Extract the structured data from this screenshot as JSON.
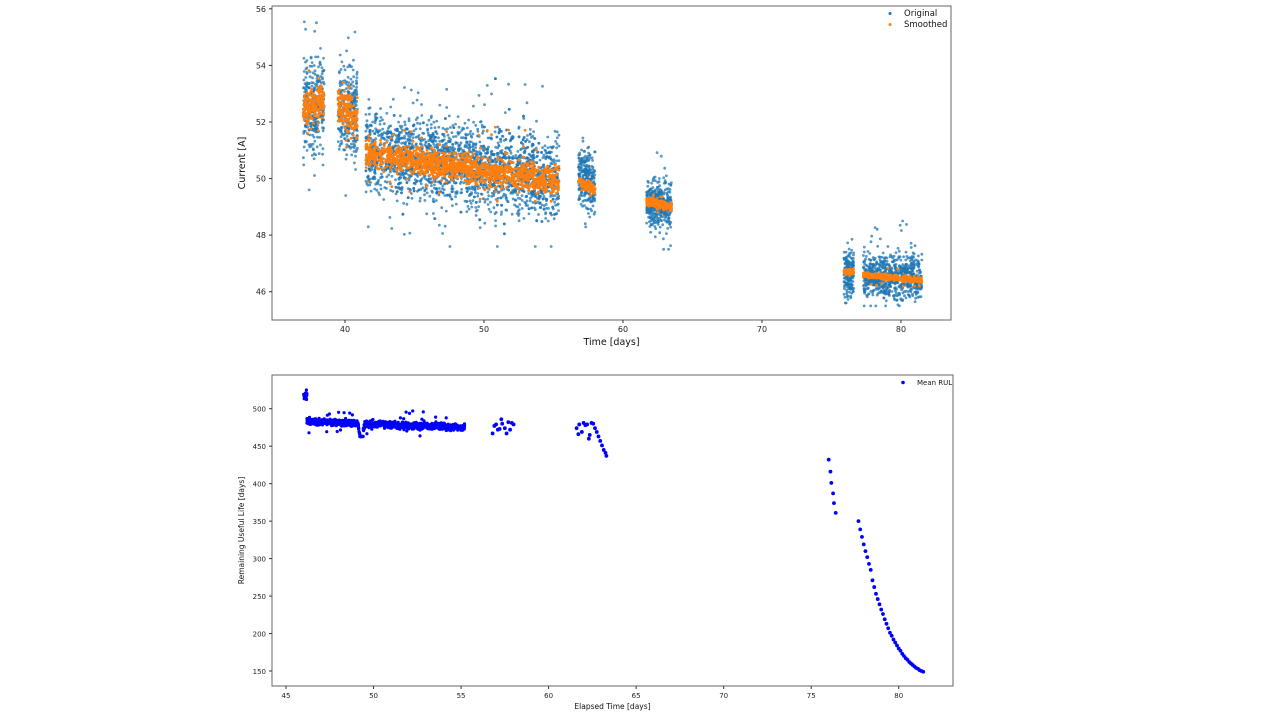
{
  "chart_data": [
    {
      "type": "scatter",
      "xlabel": "Time [days]",
      "ylabel": "Current [A]",
      "xlim": [
        34.75,
        83.6
      ],
      "ylim": [
        45.0,
        56.1
      ],
      "xticks": [
        40,
        50,
        60,
        70,
        80
      ],
      "yticks": [
        46,
        48,
        50,
        52,
        54,
        56
      ],
      "grid": false,
      "legend": {
        "placement": "top-right",
        "entries": [
          "Original",
          "Smoothed"
        ]
      },
      "colors": {
        "Original": "#1f77b4",
        "Smoothed": "#ff7f0e"
      },
      "series": [
        {
          "name": "Original",
          "note": "dense point clusters summarised by time span, trend and spread",
          "segments": [
            {
              "x": [
                37.0,
                38.5
              ],
              "center": [
                52.5,
                52.6
              ],
              "spread": 1.5,
              "min": 49.6,
              "max": 55.6
            },
            {
              "x": [
                39.5,
                40.9
              ],
              "center": [
                52.4,
                52.2
              ],
              "spread": 1.5,
              "min": 49.4,
              "max": 55.4
            },
            {
              "x": [
                41.5,
                55.4
              ],
              "center": [
                51.0,
                50.0
              ],
              "spread": 1.3,
              "min": 47.6,
              "max": 53.7
            },
            {
              "x": [
                56.8,
                58.0
              ],
              "center": [
                50.1,
                49.8
              ],
              "spread": 0.9,
              "min": 47.2,
              "max": 51.7
            },
            {
              "x": [
                61.7,
                63.5
              ],
              "center": [
                49.1,
                49.1
              ],
              "spread": 0.8,
              "min": 47.5,
              "max": 51.3
            },
            {
              "x": [
                75.9,
                76.6
              ],
              "center": [
                46.7,
                46.6
              ],
              "spread": 0.7,
              "min": 45.6,
              "max": 48.0
            },
            {
              "x": [
                77.3,
                81.5
              ],
              "center": [
                46.6,
                46.5
              ],
              "spread": 0.7,
              "min": 45.5,
              "max": 48.6
            }
          ]
        },
        {
          "name": "Smoothed",
          "segments": [
            {
              "x": [
                37.0,
                38.5
              ],
              "center": [
                52.4,
                52.8
              ],
              "spread": 0.5,
              "min": 51.6,
              "max": 54.2
            },
            {
              "x": [
                39.5,
                40.9
              ],
              "center": [
                52.6,
                52.1
              ],
              "spread": 0.6,
              "min": 51.0,
              "max": 53.7
            },
            {
              "x": [
                41.5,
                55.4
              ],
              "center": [
                50.9,
                49.9
              ],
              "spread": 0.45,
              "min": 49.2,
              "max": 51.9
            },
            {
              "x": [
                56.8,
                58.0
              ],
              "center": [
                49.9,
                49.6
              ],
              "spread": 0.12,
              "min": 49.4,
              "max": 50.2
            },
            {
              "x": [
                61.7,
                63.5
              ],
              "center": [
                49.2,
                49.0
              ],
              "spread": 0.12,
              "min": 48.8,
              "max": 49.5
            },
            {
              "x": [
                75.9,
                76.6
              ],
              "center": [
                46.7,
                46.7
              ],
              "spread": 0.08,
              "min": 46.4,
              "max": 46.9
            },
            {
              "x": [
                77.3,
                81.5
              ],
              "center": [
                46.6,
                46.4
              ],
              "spread": 0.08,
              "min": 46.2,
              "max": 46.9
            }
          ]
        }
      ]
    },
    {
      "type": "scatter",
      "xlabel": "Elapsed Time [days]",
      "ylabel": "Remaining Useful Life [days]",
      "xlim": [
        44.2,
        83.1
      ],
      "ylim": [
        130,
        545
      ],
      "xticks": [
        45,
        50,
        55,
        60,
        65,
        70,
        75,
        80
      ],
      "yticks": [
        150,
        200,
        250,
        300,
        350,
        400,
        450,
        500
      ],
      "grid": false,
      "legend": {
        "placement": "top-right",
        "entries": [
          "Mean RUL"
        ]
      },
      "colors": {
        "Mean RUL": "#0000ff"
      },
      "series": [
        {
          "name": "Mean RUL",
          "segments": [
            {
              "x": [
                46.0,
                46.2
              ],
              "center": [
                516,
                516
              ],
              "spread": 5,
              "min": 505,
              "max": 526
            },
            {
              "x": [
                46.2,
                55.2
              ],
              "center": [
                483,
                475
              ],
              "spread": 4,
              "min": 463,
              "max": 498,
              "dip": {
                "x": 49.3,
                "min": 453
              }
            }
          ],
          "points": [
            [
              56.8,
              467
            ],
            [
              56.9,
              477
            ],
            [
              57.0,
              479
            ],
            [
              57.1,
              472
            ],
            [
              57.2,
              473
            ],
            [
              57.3,
              486
            ],
            [
              57.35,
              480
            ],
            [
              57.5,
              474
            ],
            [
              57.6,
              467
            ],
            [
              57.7,
              482
            ],
            [
              57.8,
              472
            ],
            [
              57.9,
              481
            ],
            [
              58.0,
              479
            ],
            [
              61.6,
              474
            ],
            [
              61.7,
              466
            ],
            [
              61.75,
              479
            ],
            [
              61.9,
              469
            ],
            [
              62.0,
              481
            ],
            [
              62.1,
              478
            ],
            [
              62.2,
              479
            ],
            [
              62.3,
              460
            ],
            [
              62.35,
              465
            ],
            [
              62.45,
              481
            ],
            [
              62.55,
              480
            ],
            [
              62.65,
              474
            ],
            [
              62.75,
              469
            ],
            [
              62.85,
              463
            ],
            [
              62.95,
              457
            ],
            [
              63.05,
              451
            ],
            [
              63.15,
              445
            ],
            [
              63.25,
              441
            ],
            [
              63.3,
              437
            ],
            [
              76.0,
              432
            ],
            [
              76.1,
              416
            ],
            [
              76.15,
              401
            ],
            [
              76.25,
              387
            ],
            [
              76.3,
              374
            ],
            [
              76.4,
              361
            ],
            [
              77.7,
              350
            ],
            [
              77.8,
              339
            ],
            [
              77.9,
              329
            ],
            [
              78.0,
              319
            ],
            [
              78.1,
              310
            ],
            [
              78.2,
              302
            ],
            [
              78.3,
              293
            ],
            [
              78.4,
              285
            ],
            [
              78.5,
              271
            ],
            [
              78.6,
              262
            ],
            [
              78.7,
              253
            ],
            [
              78.8,
              246
            ],
            [
              78.9,
              239
            ],
            [
              79.0,
              232
            ],
            [
              79.1,
              226
            ],
            [
              79.2,
              219
            ],
            [
              79.3,
              213
            ],
            [
              79.4,
              207
            ],
            [
              79.5,
              201
            ],
            [
              79.6,
              197
            ],
            [
              79.7,
              192
            ],
            [
              79.8,
              188
            ],
            [
              79.9,
              184
            ],
            [
              80.0,
              180
            ],
            [
              80.1,
              177
            ],
            [
              80.2,
              173
            ],
            [
              80.3,
              170
            ],
            [
              80.4,
              167
            ],
            [
              80.5,
              165
            ],
            [
              80.6,
              162
            ],
            [
              80.7,
              160
            ],
            [
              80.8,
              158
            ],
            [
              80.9,
              156
            ],
            [
              81.0,
              154
            ],
            [
              81.1,
              153
            ],
            [
              81.2,
              151
            ],
            [
              81.3,
              150
            ],
            [
              81.4,
              149
            ]
          ]
        }
      ]
    }
  ]
}
